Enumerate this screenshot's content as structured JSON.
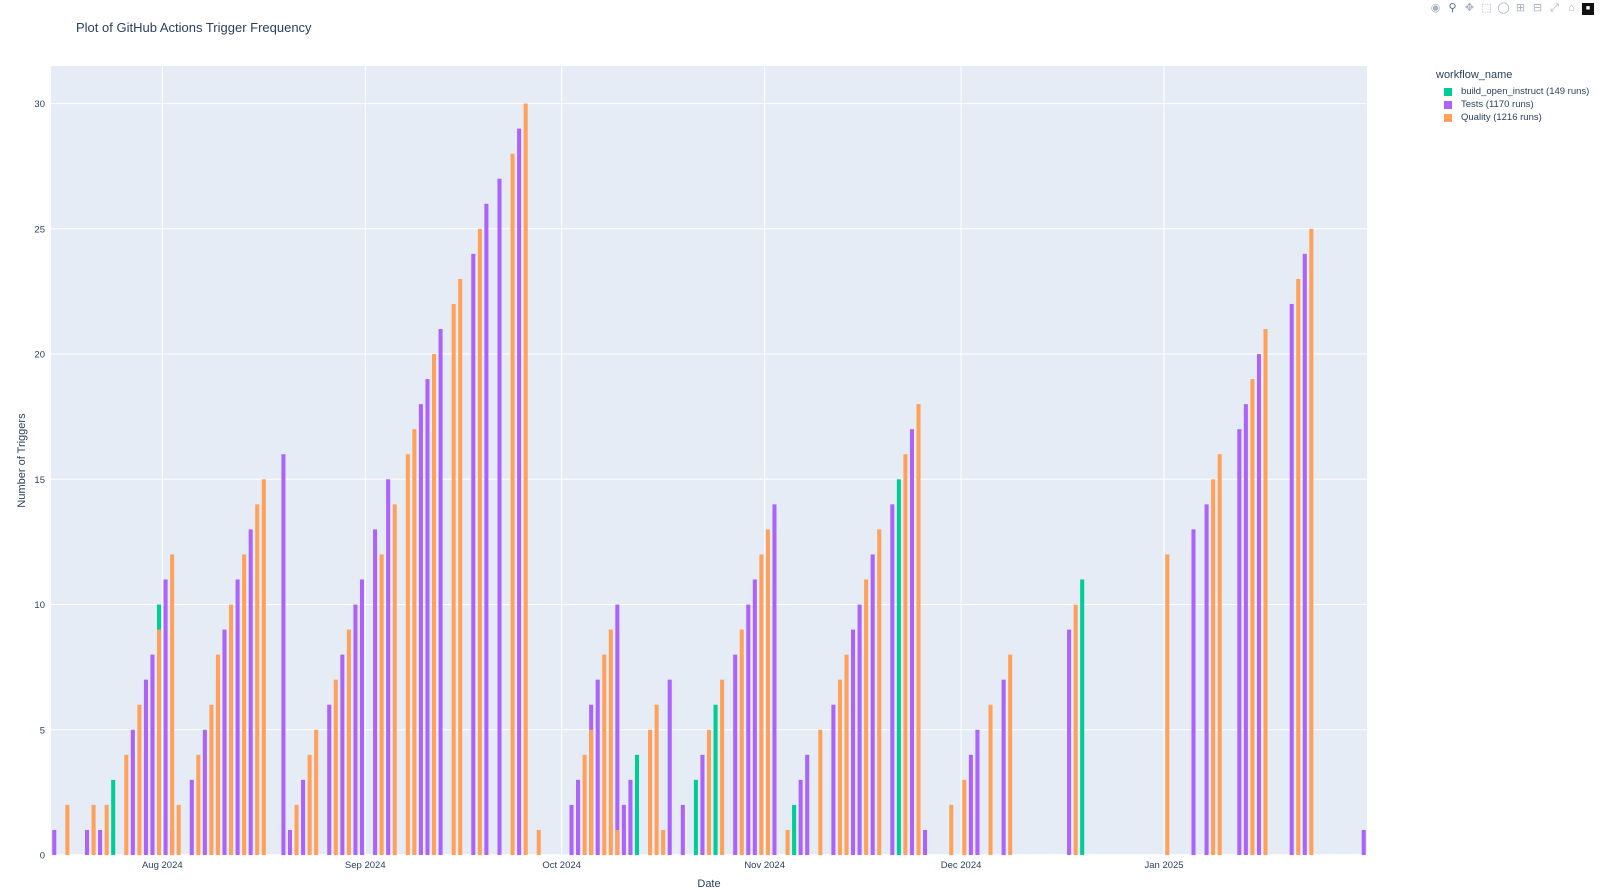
{
  "chart_data": {
    "type": "bar",
    "title": "Plot of GitHub Actions Trigger Frequency",
    "xlabel": "Date",
    "ylabel": "Number of Triggers",
    "x_range": [
      "2024-07-15",
      "2025-01-31"
    ],
    "ylim": [
      0,
      31.5
    ],
    "y_ticks": [
      0,
      5,
      10,
      15,
      20,
      25,
      30
    ],
    "x_ticks": [
      {
        "label": "Aug 2024",
        "date": "2024-08-01"
      },
      {
        "label": "Sep 2024",
        "date": "2024-09-01"
      },
      {
        "label": "Oct 2024",
        "date": "2024-10-01"
      },
      {
        "label": "Nov 2024",
        "date": "2024-11-01"
      },
      {
        "label": "Dec 2024",
        "date": "2024-12-01"
      },
      {
        "label": "Jan 2025",
        "date": "2025-01-01"
      }
    ],
    "grid": true,
    "legend_title": "workflow_name",
    "legend_position": "top-right",
    "series": [
      {
        "name": "build_open_instruct (149 runs)",
        "color": "#00cc96",
        "points": [
          [
            "2024-07-24",
            3
          ],
          [
            "2024-07-31",
            10
          ],
          [
            "2024-10-12",
            4
          ],
          [
            "2024-10-21",
            3
          ],
          [
            "2024-10-24",
            6
          ],
          [
            "2024-11-05",
            2
          ],
          [
            "2024-11-21",
            15
          ],
          [
            "2024-12-19",
            11
          ]
        ]
      },
      {
        "name": "Tests (1170 runs)",
        "color": "#ab63fa",
        "points": [
          [
            "2024-07-15",
            1
          ],
          [
            "2024-07-20",
            1
          ],
          [
            "2024-07-22",
            1
          ],
          [
            "2024-07-27",
            5
          ],
          [
            "2024-07-29",
            7
          ],
          [
            "2024-07-30",
            8
          ],
          [
            "2024-08-01",
            11
          ],
          [
            "2024-08-02",
            1
          ],
          [
            "2024-08-05",
            3
          ],
          [
            "2024-08-07",
            5
          ],
          [
            "2024-08-09",
            7
          ],
          [
            "2024-08-10",
            9
          ],
          [
            "2024-08-12",
            11
          ],
          [
            "2024-08-14",
            13
          ],
          [
            "2024-08-19",
            16
          ],
          [
            "2024-08-20",
            1
          ],
          [
            "2024-08-22",
            3
          ],
          [
            "2024-08-26",
            6
          ],
          [
            "2024-08-28",
            8
          ],
          [
            "2024-08-30",
            10
          ],
          [
            "2024-08-31",
            11
          ],
          [
            "2024-09-02",
            13
          ],
          [
            "2024-09-04",
            15
          ],
          [
            "2024-09-09",
            18
          ],
          [
            "2024-09-10",
            19
          ],
          [
            "2024-09-12",
            21
          ],
          [
            "2024-09-17",
            24
          ],
          [
            "2024-09-19",
            26
          ],
          [
            "2024-09-21",
            27
          ],
          [
            "2024-09-24",
            29
          ],
          [
            "2024-10-02",
            2
          ],
          [
            "2024-10-03",
            3
          ],
          [
            "2024-10-05",
            6
          ],
          [
            "2024-10-06",
            7
          ],
          [
            "2024-10-09",
            10
          ],
          [
            "2024-10-10",
            2
          ],
          [
            "2024-10-11",
            3
          ],
          [
            "2024-10-17",
            7
          ],
          [
            "2024-10-19",
            2
          ],
          [
            "2024-10-22",
            4
          ],
          [
            "2024-10-27",
            8
          ],
          [
            "2024-10-29",
            10
          ],
          [
            "2024-10-30",
            11
          ],
          [
            "2024-11-02",
            14
          ],
          [
            "2024-11-06",
            3
          ],
          [
            "2024-11-07",
            4
          ],
          [
            "2024-11-11",
            6
          ],
          [
            "2024-11-14",
            9
          ],
          [
            "2024-11-15",
            10
          ],
          [
            "2024-11-17",
            12
          ],
          [
            "2024-11-20",
            14
          ],
          [
            "2024-11-23",
            17
          ],
          [
            "2024-11-25",
            1
          ],
          [
            "2024-12-02",
            4
          ],
          [
            "2024-12-03",
            5
          ],
          [
            "2024-12-07",
            7
          ],
          [
            "2024-12-17",
            9
          ],
          [
            "2025-01-05",
            13
          ],
          [
            "2025-01-07",
            14
          ],
          [
            "2025-01-12",
            17
          ],
          [
            "2025-01-13",
            18
          ],
          [
            "2025-01-15",
            20
          ],
          [
            "2025-01-20",
            22
          ],
          [
            "2025-01-22",
            24
          ],
          [
            "2025-01-31",
            1
          ]
        ]
      },
      {
        "name": "Quality (1216 runs)",
        "color": "#ffa15a",
        "points": [
          [
            "2024-07-17",
            2
          ],
          [
            "2024-07-21",
            2
          ],
          [
            "2024-07-23",
            2
          ],
          [
            "2024-07-26",
            4
          ],
          [
            "2024-07-28",
            6
          ],
          [
            "2024-07-31",
            9
          ],
          [
            "2024-08-02",
            12
          ],
          [
            "2024-08-03",
            2
          ],
          [
            "2024-08-06",
            4
          ],
          [
            "2024-08-08",
            6
          ],
          [
            "2024-08-09",
            8
          ],
          [
            "2024-08-11",
            10
          ],
          [
            "2024-08-13",
            12
          ],
          [
            "2024-08-15",
            14
          ],
          [
            "2024-08-16",
            15
          ],
          [
            "2024-08-21",
            2
          ],
          [
            "2024-08-23",
            4
          ],
          [
            "2024-08-24",
            5
          ],
          [
            "2024-08-27",
            7
          ],
          [
            "2024-08-29",
            9
          ],
          [
            "2024-09-03",
            12
          ],
          [
            "2024-09-05",
            14
          ],
          [
            "2024-09-07",
            16
          ],
          [
            "2024-09-08",
            17
          ],
          [
            "2024-09-11",
            20
          ],
          [
            "2024-09-14",
            22
          ],
          [
            "2024-09-15",
            23
          ],
          [
            "2024-09-18",
            25
          ],
          [
            "2024-09-23",
            28
          ],
          [
            "2024-09-25",
            30
          ],
          [
            "2024-09-27",
            1
          ],
          [
            "2024-10-04",
            4
          ],
          [
            "2024-10-05",
            5
          ],
          [
            "2024-10-07",
            8
          ],
          [
            "2024-10-08",
            9
          ],
          [
            "2024-10-09",
            1
          ],
          [
            "2024-10-14",
            5
          ],
          [
            "2024-10-15",
            6
          ],
          [
            "2024-10-16",
            1
          ],
          [
            "2024-10-23",
            5
          ],
          [
            "2024-10-25",
            7
          ],
          [
            "2024-10-28",
            9
          ],
          [
            "2024-10-31",
            12
          ],
          [
            "2024-11-01",
            13
          ],
          [
            "2024-11-04",
            1
          ],
          [
            "2024-11-09",
            5
          ],
          [
            "2024-11-12",
            7
          ],
          [
            "2024-11-13",
            8
          ],
          [
            "2024-11-16",
            11
          ],
          [
            "2024-11-18",
            13
          ],
          [
            "2024-11-22",
            16
          ],
          [
            "2024-11-24",
            18
          ],
          [
            "2024-11-29",
            2
          ],
          [
            "2024-12-01",
            3
          ],
          [
            "2024-12-05",
            6
          ],
          [
            "2024-12-08",
            8
          ],
          [
            "2024-12-18",
            10
          ],
          [
            "2025-01-01",
            12
          ],
          [
            "2025-01-08",
            15
          ],
          [
            "2025-01-09",
            16
          ],
          [
            "2025-01-14",
            19
          ],
          [
            "2025-01-16",
            21
          ],
          [
            "2025-01-21",
            23
          ],
          [
            "2025-01-23",
            25
          ]
        ]
      }
    ]
  }
}
